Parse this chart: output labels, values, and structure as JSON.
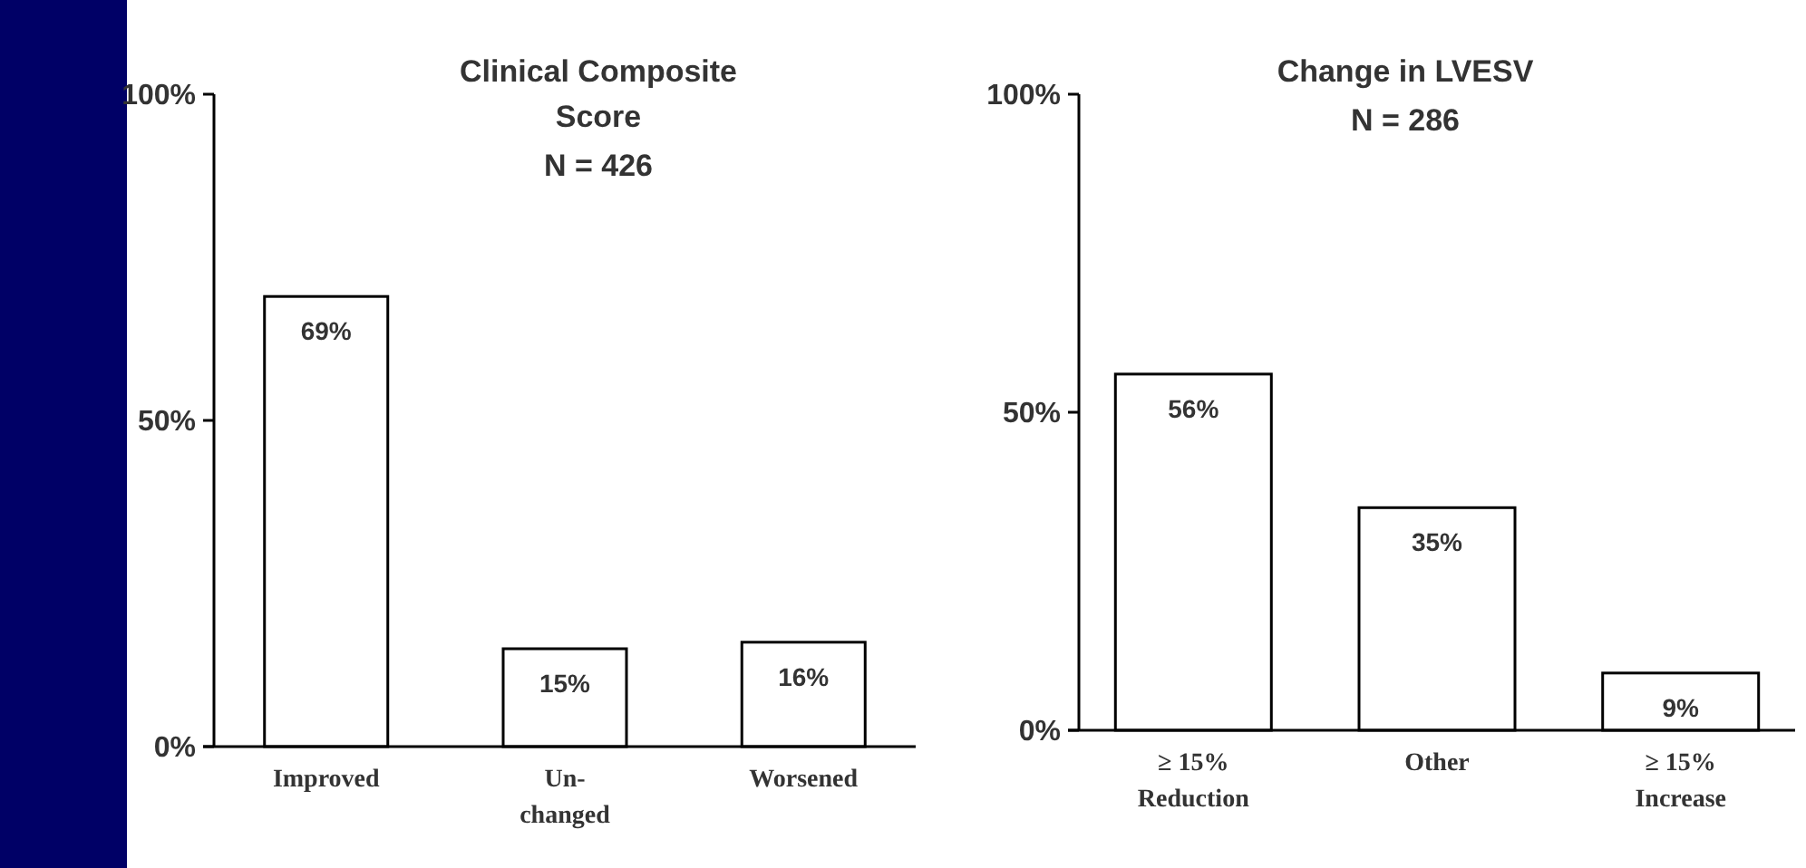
{
  "chart_data": [
    {
      "type": "bar",
      "title": "Clinical Composite\nScore",
      "subtitle": "N = 426",
      "categories": [
        "Improved",
        "Un-\nchanged",
        "Worsened"
      ],
      "values": [
        69,
        15,
        16
      ],
      "value_labels": [
        "69%",
        "15%",
        "16%"
      ],
      "color": "#ffffff",
      "ylim": [
        0,
        100
      ],
      "yticks": [
        {
          "value": 0,
          "label": "0%"
        },
        {
          "value": 50,
          "label": "50%"
        },
        {
          "value": 100,
          "label": "100%"
        }
      ],
      "grid": false
    },
    {
      "type": "bar",
      "title": "Change in LVESV",
      "subtitle": "N = 286",
      "categories": [
        "≥ 15%\nReduction",
        "Other",
        "≥ 15%\nIncrease"
      ],
      "values": [
        56,
        35,
        9
      ],
      "value_labels": [
        "56%",
        "35%",
        "9%"
      ],
      "color": "#ffffff",
      "ylim": [
        0,
        100
      ],
      "yticks": [
        {
          "value": 0,
          "label": "0%"
        },
        {
          "value": 50,
          "label": "50%"
        },
        {
          "value": 100,
          "label": "100%"
        }
      ],
      "grid": false
    }
  ]
}
